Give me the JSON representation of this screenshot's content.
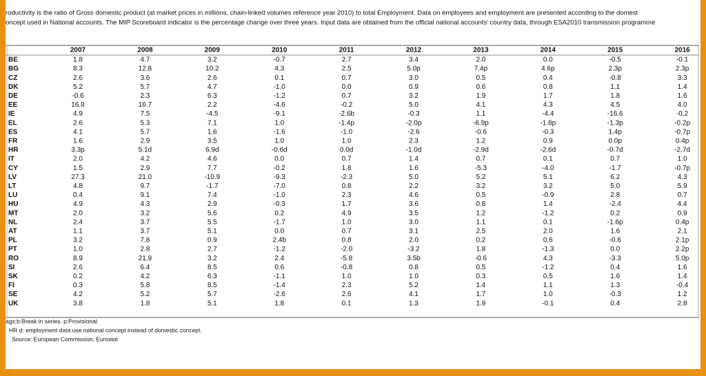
{
  "intro": [
    "roductivity is the ratio of Gross domestic product (at market prices in millions, chain-linked volumes reference year 2010) to total Employment. Data on employees and  employment are presented according to the domest",
    "oncept used in National accounts. The MIP Scoreboard indicator is the percentage change over three years. Input data are obtained from the official national accounts' country data, through ESA2010 transmission programme"
  ],
  "table": {
    "years": [
      "2007",
      "2008",
      "2009",
      "2010",
      "2011",
      "2012",
      "2013",
      "2014",
      "2015",
      "2016"
    ],
    "rows": [
      {
        "label": "BE",
        "values": [
          "1.8",
          "4.7",
          "3.2",
          "-0.7",
          "2.7",
          "3.4",
          "2.0",
          "0.0",
          "-0.5",
          "-0.1"
        ]
      },
      {
        "label": "BG",
        "values": [
          "8.3",
          "12.8",
          "10.2",
          "4.3",
          "2.5",
          "5.0p",
          "7.4p",
          "4.6p",
          "2.3p",
          "2.3p"
        ]
      },
      {
        "label": "CZ",
        "values": [
          "2.6",
          "3.6",
          "2.6",
          "0.1",
          "0.7",
          "3.0",
          "0.5",
          "0.4",
          "-0.8",
          "3.3"
        ]
      },
      {
        "label": "DK",
        "values": [
          "5.2",
          "5.7",
          "4.7",
          "-1.0",
          "0.0",
          "0.9",
          "0.6",
          "0.8",
          "1.1",
          "1.4"
        ]
      },
      {
        "label": "DE",
        "values": [
          "-0.6",
          "2.3",
          "6.3",
          "-1.2",
          "0.7",
          "3.2",
          "1.9",
          "1.7",
          "1.8",
          "1.6"
        ]
      },
      {
        "label": "EE",
        "values": [
          "16.8",
          "16.7",
          "2.2",
          "-4.6",
          "-0.2",
          "5.0",
          "4.1",
          "4.3",
          "4.5",
          "4.0"
        ]
      },
      {
        "label": "IE",
        "values": [
          "4.9",
          "7.5",
          "-4.5",
          "-9.1",
          "-2.6b",
          "-0.3",
          "1.1",
          "-4.4",
          "-16.6",
          "-0.2"
        ]
      },
      {
        "label": "EL",
        "values": [
          "2.6",
          "5.3",
          "7.1",
          "1.0",
          "-1.4p",
          "-2.0p",
          "-6.9p",
          "-1.8p",
          "-1.3p",
          "-0.2p"
        ]
      },
      {
        "label": "ES",
        "values": [
          "4.1",
          "5.7",
          "1.6",
          "-1.6",
          "-1.0",
          "-2.6",
          "-0.6",
          "-0.3",
          "1.4p",
          "-0.7p"
        ]
      },
      {
        "label": "FR",
        "values": [
          "1.6",
          "2.9",
          "3.5",
          "1.0",
          "1.0",
          "2.3",
          "1.2",
          "0.9",
          "0.0p",
          "0.4p"
        ]
      },
      {
        "label": "HR",
        "values": [
          "3.3p",
          "5.1d",
          "6.9d",
          "-0.6d",
          "0.0d",
          "-1.0d",
          "-2.9d",
          "-2.6d",
          "-0.7d",
          "-2.7d"
        ]
      },
      {
        "label": "IT",
        "values": [
          "2.0",
          "4.2",
          "4.6",
          "0.0",
          "0.7",
          "1.4",
          "0.7",
          "0.1",
          "0.7",
          "1.0"
        ]
      },
      {
        "label": "CY",
        "values": [
          "1.5",
          "2.9",
          "7.7",
          "-0.2",
          "1.8",
          "1.6",
          "-5.3",
          "-4.0",
          "-1.7",
          "-0.7p"
        ]
      },
      {
        "label": "LV",
        "values": [
          "27.3",
          "21.0",
          "-10.9",
          "-9.3",
          "-2.3",
          "5.0",
          "5.2",
          "5.1",
          "6.2",
          "4.3"
        ]
      },
      {
        "label": "LT",
        "values": [
          "4.8",
          "9.7",
          "-1.7",
          "-7.0",
          "0.8",
          "2.2",
          "3.2",
          "3.2",
          "5.0",
          "5.9"
        ]
      },
      {
        "label": "LU",
        "values": [
          "0.4",
          "9.1",
          "7.4",
          "-1.0",
          "2.3",
          "4.6",
          "0.5",
          "-0.9",
          "2.8",
          "0.7"
        ]
      },
      {
        "label": "HU",
        "values": [
          "4.9",
          "4.3",
          "2.9",
          "-0.3",
          "1.7",
          "3.6",
          "0.8",
          "1.4",
          "-2.4",
          "4.4"
        ]
      },
      {
        "label": "MT",
        "values": [
          "2.0",
          "3.2",
          "5.6",
          "0.2",
          "4.9",
          "3.5",
          "1.2",
          "-1.2",
          "0.2",
          "0.9"
        ]
      },
      {
        "label": "NL",
        "values": [
          "2.4",
          "3.7",
          "5.5",
          "-1.7",
          "1.0",
          "3.0",
          "1.1",
          "0.1",
          "-1.6p",
          "0.4p"
        ]
      },
      {
        "label": "AT",
        "values": [
          "1.1",
          "3.7",
          "5.1",
          "0.0",
          "0.7",
          "3.1",
          "2.5",
          "2.0",
          "1.6",
          "2.1"
        ]
      },
      {
        "label": "PL",
        "values": [
          "3.2",
          "7.8",
          "0.9",
          "2.4b",
          "0.8",
          "2.0",
          "0.2",
          "0.6",
          "-0.6",
          "2.1p"
        ]
      },
      {
        "label": "PT",
        "values": [
          "1.0",
          "2.8",
          "2.7",
          "-1.2",
          "-2.0",
          "-3.2",
          "1.8",
          "-1.3",
          "0.0",
          "2.2p"
        ]
      },
      {
        "label": "RO",
        "values": [
          "8.9",
          "21.9",
          "3.2",
          "2.4",
          "-5.8",
          "3.5b",
          "-0.6",
          "4.3",
          "-3.3",
          "5.0p"
        ]
      },
      {
        "label": "SI",
        "values": [
          "2.6",
          "6.4",
          "8.5",
          "0.6",
          "-0.8",
          "0.8",
          "0.5",
          "-1.2",
          "0.4",
          "1.6"
        ]
      },
      {
        "label": "SK",
        "values": [
          "0.2",
          "4.2",
          "6.3",
          "-1.1",
          "1.0",
          "1.0",
          "0.3",
          "0.5",
          "1.6",
          "1.4"
        ]
      },
      {
        "label": "FI",
        "values": [
          "0.3",
          "5.8",
          "8.5",
          "-1.4",
          "2.3",
          "5.2",
          "1.4",
          "1.1",
          "1.3",
          "-0.4"
        ]
      },
      {
        "label": "SE",
        "values": [
          "4.2",
          "5.2",
          "5.7",
          "-2.6",
          "2.6",
          "4.1",
          "1.7",
          "1.0",
          "-0.3",
          "1.2"
        ]
      },
      {
        "label": "UK",
        "values": [
          "3.8",
          "1.8",
          "5.1",
          "1.8",
          "0.1",
          "1.3",
          "1.9",
          "-0.1",
          "0.4",
          "2.8"
        ]
      }
    ]
  },
  "notes": [
    "ags:b:Break in series. p:Provisional.",
    "HR d: employment data use national concept instead of domestic concept.",
    "Source: European Commission, Eurostat"
  ]
}
